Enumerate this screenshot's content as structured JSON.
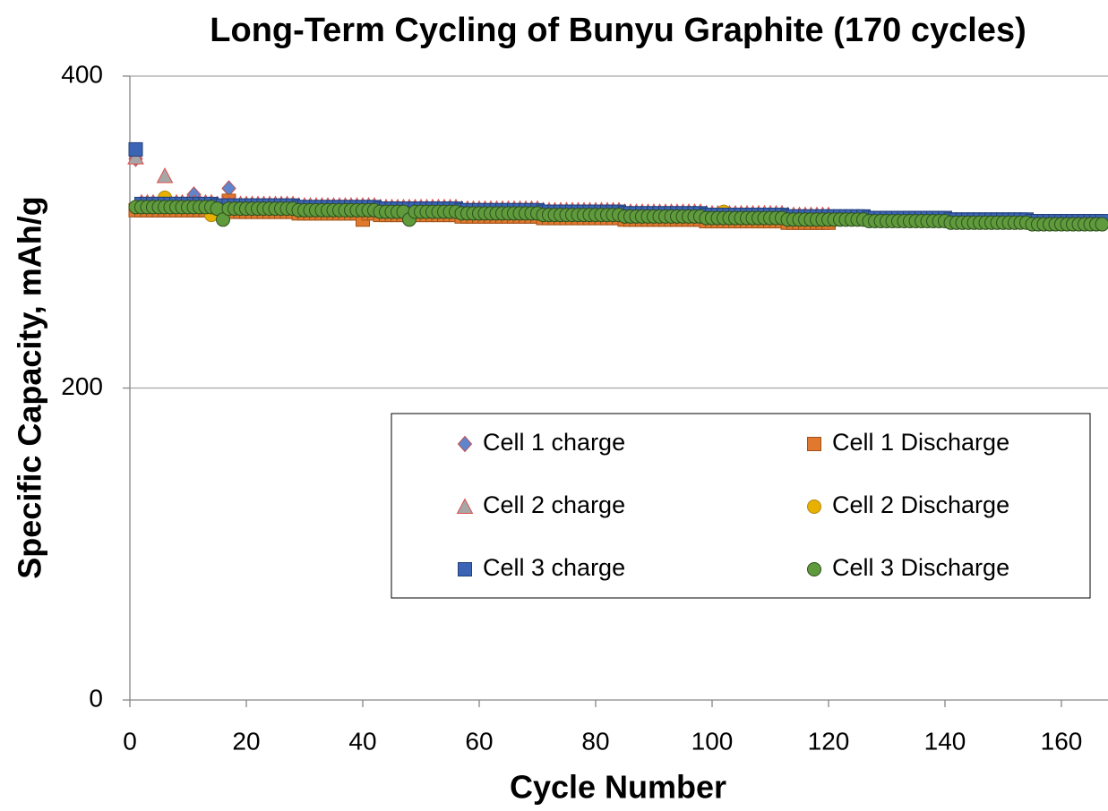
{
  "chart_data": {
    "type": "scatter",
    "title": "Long-Term Cycling of Bunyu Graphite (170 cycles)",
    "xlabel": "Cycle Number",
    "ylabel": "Specific Capacity, mAh/g",
    "xlim": [
      0,
      168
    ],
    "xticks": [
      0,
      20,
      40,
      60,
      80,
      100,
      120,
      140,
      160
    ],
    "ylim": [
      0,
      400
    ],
    "yticks": [
      0,
      200,
      400
    ],
    "grid": true,
    "legend_columns": 2,
    "x": [
      1,
      2,
      3,
      4,
      5,
      6,
      7,
      8,
      9,
      10,
      11,
      12,
      13,
      14,
      15,
      16,
      17,
      18,
      19,
      20,
      21,
      22,
      23,
      24,
      25,
      26,
      27,
      28,
      29,
      30,
      31,
      32,
      33,
      34,
      35,
      36,
      37,
      38,
      39,
      40,
      41,
      42,
      43,
      44,
      45,
      46,
      47,
      48,
      49,
      50,
      51,
      52,
      53,
      54,
      55,
      56,
      57,
      58,
      59,
      60,
      61,
      62,
      63,
      64,
      65,
      66,
      67,
      68,
      69,
      70,
      71,
      72,
      73,
      74,
      75,
      76,
      77,
      78,
      79,
      80,
      81,
      82,
      83,
      84,
      85,
      86,
      87,
      88,
      89,
      90,
      91,
      92,
      93,
      94,
      95,
      96,
      97,
      98,
      99,
      100,
      101,
      102,
      103,
      104,
      105,
      106,
      107,
      108,
      109,
      110,
      111,
      112,
      113,
      114,
      115,
      116,
      117,
      118,
      119,
      120,
      121,
      122,
      123,
      124,
      125,
      126,
      127,
      128,
      129,
      130,
      131,
      132,
      133,
      134,
      135,
      136,
      137,
      138,
      139,
      140,
      141,
      142,
      143,
      144,
      145,
      146,
      147,
      148,
      149,
      150,
      151,
      152,
      153,
      154,
      155,
      156,
      157,
      158,
      159,
      160,
      161,
      162,
      163,
      164,
      165,
      166,
      167
    ],
    "series": [
      {
        "name": "Cell 1 charge",
        "marker": "diamond",
        "color": "#5f86cc",
        "edgecolor": "#c0504d",
        "values": [
          347,
          318,
          318,
          318,
          318,
          318,
          318,
          318,
          318,
          318,
          324,
          318,
          318,
          318,
          317,
          317,
          328,
          317,
          317,
          317,
          317,
          317,
          317,
          317,
          317,
          317,
          317,
          317,
          316,
          316,
          316,
          316,
          316,
          316,
          316,
          316,
          316,
          316,
          316,
          316,
          316,
          316,
          315,
          315,
          315,
          315,
          315,
          315,
          315,
          315,
          315,
          315,
          315,
          315,
          315,
          315,
          314,
          314,
          314,
          314,
          314,
          314,
          314,
          314,
          314,
          314,
          314,
          314,
          314,
          314,
          313,
          313,
          313,
          313,
          313,
          313,
          313,
          313,
          313,
          313,
          313,
          313,
          313,
          313,
          312,
          312,
          312,
          312,
          312,
          312,
          312,
          312,
          312,
          312,
          312,
          312,
          312,
          312,
          311,
          311,
          311,
          311,
          311,
          311,
          311,
          311,
          311,
          311,
          311,
          311,
          311,
          311,
          310,
          310,
          310,
          310,
          310,
          310,
          310,
          310,
          null,
          null,
          null,
          null,
          null,
          null,
          null,
          null,
          null,
          null,
          null,
          null,
          null,
          null,
          null,
          null,
          null,
          null,
          null,
          null,
          null,
          null,
          null,
          null,
          null,
          null,
          null,
          null,
          null,
          null,
          null,
          null,
          null,
          null,
          null,
          null,
          null,
          null,
          null,
          null,
          null,
          null,
          null,
          null,
          null,
          null,
          null
        ]
      },
      {
        "name": "Cell 1 Discharge",
        "marker": "square",
        "color": "#e0782e",
        "edgecolor": "#a0521a",
        "values": [
          314,
          314,
          314,
          314,
          314,
          314,
          314,
          314,
          314,
          314,
          314,
          314,
          314,
          314,
          313,
          313,
          320,
          313,
          313,
          313,
          313,
          313,
          313,
          313,
          313,
          313,
          313,
          313,
          312,
          312,
          312,
          312,
          312,
          312,
          312,
          312,
          312,
          312,
          312,
          308,
          312,
          312,
          311,
          311,
          311,
          311,
          311,
          311,
          311,
          311,
          311,
          311,
          311,
          311,
          311,
          311,
          310,
          310,
          310,
          310,
          310,
          310,
          310,
          310,
          310,
          310,
          310,
          310,
          310,
          310,
          309,
          309,
          309,
          309,
          309,
          309,
          309,
          309,
          309,
          309,
          309,
          309,
          309,
          309,
          308,
          308,
          308,
          308,
          308,
          308,
          308,
          308,
          308,
          308,
          308,
          308,
          308,
          308,
          307,
          307,
          307,
          307,
          307,
          307,
          307,
          307,
          307,
          307,
          307,
          307,
          307,
          307,
          306,
          306,
          306,
          306,
          306,
          306,
          306,
          306,
          null,
          null,
          null,
          null,
          null,
          null,
          null,
          null,
          null,
          null,
          null,
          null,
          null,
          null,
          null,
          null,
          null,
          null,
          null,
          null,
          null,
          null,
          null,
          null,
          null,
          null,
          null,
          null,
          null,
          null,
          null,
          null,
          null,
          null,
          null,
          null,
          null,
          null,
          null,
          null,
          null,
          null,
          null,
          null,
          null,
          null,
          null
        ]
      },
      {
        "name": "Cell 2 charge",
        "marker": "triangle",
        "color": "#a6a6a6",
        "edgecolor": "#e0504d",
        "values": [
          348,
          319,
          319,
          319,
          319,
          336,
          319,
          319,
          319,
          319,
          319,
          319,
          319,
          319,
          318,
          318,
          318,
          318,
          318,
          318,
          318,
          318,
          318,
          318,
          318,
          318,
          318,
          318,
          317,
          317,
          317,
          317,
          317,
          317,
          317,
          317,
          317,
          317,
          317,
          317,
          317,
          317,
          316,
          316,
          316,
          316,
          316,
          316,
          316,
          316,
          316,
          316,
          316,
          316,
          316,
          316,
          315,
          315,
          315,
          315,
          315,
          315,
          315,
          315,
          315,
          315,
          315,
          315,
          315,
          315,
          314,
          314,
          314,
          314,
          314,
          314,
          314,
          314,
          314,
          314,
          314,
          314,
          314,
          314,
          313,
          313,
          313,
          313,
          313,
          313,
          313,
          313,
          313,
          313,
          313,
          313,
          313,
          313,
          312,
          312,
          312,
          312,
          312,
          312,
          312,
          312,
          312,
          312,
          312,
          312,
          312,
          312,
          311,
          311,
          311,
          311,
          311,
          311,
          311,
          311,
          null,
          null,
          null,
          null,
          null,
          null,
          null,
          null,
          null,
          null,
          null,
          null,
          null,
          null,
          null,
          null,
          null,
          null,
          null,
          null,
          null,
          null,
          null,
          null,
          null,
          null,
          null,
          null,
          null,
          null,
          null,
          null,
          null,
          null,
          null,
          null,
          null,
          null,
          null,
          null,
          null,
          null,
          null,
          null,
          null,
          null,
          null
        ]
      },
      {
        "name": "Cell 2 Discharge",
        "marker": "circle",
        "color": "#e8b000",
        "edgecolor": "#b08a10",
        "values": [
          316,
          316,
          316,
          316,
          316,
          322,
          316,
          316,
          316,
          316,
          316,
          316,
          316,
          311,
          315,
          315,
          315,
          315,
          315,
          315,
          315,
          315,
          315,
          315,
          315,
          315,
          315,
          315,
          314,
          314,
          314,
          314,
          314,
          314,
          314,
          314,
          314,
          314,
          314,
          314,
          314,
          314,
          313,
          313,
          313,
          313,
          313,
          313,
          313,
          313,
          313,
          313,
          313,
          313,
          313,
          313,
          312,
          312,
          312,
          312,
          312,
          312,
          312,
          312,
          312,
          312,
          312,
          312,
          312,
          312,
          311,
          311,
          311,
          311,
          311,
          311,
          311,
          311,
          311,
          311,
          311,
          311,
          311,
          311,
          310,
          310,
          310,
          310,
          310,
          310,
          310,
          310,
          310,
          310,
          310,
          310,
          310,
          310,
          309,
          309,
          309,
          313,
          309,
          309,
          309,
          309,
          309,
          309,
          309,
          309,
          309,
          309,
          308,
          308,
          308,
          308,
          308,
          308,
          308,
          308,
          null,
          null,
          null,
          null,
          null,
          null,
          null,
          null,
          null,
          null,
          null,
          null,
          null,
          null,
          null,
          null,
          null,
          null,
          null,
          null,
          null,
          null,
          null,
          null,
          null,
          null,
          null,
          null,
          null,
          null,
          null,
          null,
          null,
          null,
          null,
          null,
          null,
          null,
          null,
          null,
          null,
          null,
          null,
          null,
          null,
          null,
          null
        ]
      },
      {
        "name": "Cell 3 charge",
        "marker": "square",
        "color": "#3b64b4",
        "edgecolor": "#23407a",
        "values": [
          353,
          318,
          318,
          318,
          318,
          318,
          318,
          318,
          318,
          318,
          318,
          318,
          318,
          318,
          317,
          317,
          317,
          317,
          317,
          317,
          317,
          317,
          317,
          317,
          317,
          317,
          317,
          317,
          316,
          316,
          316,
          316,
          316,
          316,
          316,
          316,
          316,
          316,
          316,
          316,
          316,
          316,
          315,
          315,
          315,
          315,
          315,
          315,
          315,
          315,
          315,
          315,
          315,
          315,
          315,
          315,
          314,
          314,
          314,
          314,
          314,
          314,
          314,
          314,
          314,
          314,
          314,
          314,
          314,
          314,
          313,
          313,
          313,
          313,
          313,
          313,
          313,
          313,
          313,
          313,
          313,
          313,
          313,
          313,
          312,
          312,
          312,
          312,
          312,
          312,
          312,
          312,
          312,
          312,
          312,
          312,
          312,
          312,
          311,
          311,
          311,
          311,
          311,
          311,
          311,
          311,
          311,
          311,
          311,
          311,
          311,
          311,
          310,
          310,
          310,
          310,
          310,
          310,
          310,
          310,
          310,
          310,
          310,
          310,
          310,
          310,
          309,
          309,
          309,
          309,
          309,
          309,
          309,
          309,
          309,
          309,
          309,
          309,
          309,
          309,
          308,
          308,
          308,
          308,
          308,
          308,
          308,
          308,
          308,
          308,
          308,
          308,
          308,
          308,
          307,
          307,
          307,
          307,
          307,
          307,
          307,
          307,
          307,
          307,
          307,
          307,
          307
        ]
      },
      {
        "name": "Cell 3 Discharge",
        "marker": "circle",
        "color": "#5f9a3c",
        "edgecolor": "#2f4f1e",
        "values": [
          316,
          316,
          316,
          316,
          316,
          316,
          316,
          316,
          316,
          316,
          316,
          316,
          316,
          316,
          315,
          308,
          315,
          315,
          315,
          315,
          315,
          315,
          315,
          315,
          315,
          315,
          315,
          315,
          314,
          314,
          314,
          314,
          314,
          314,
          314,
          314,
          314,
          314,
          314,
          314,
          314,
          314,
          313,
          313,
          313,
          313,
          313,
          308,
          313,
          313,
          313,
          313,
          313,
          313,
          313,
          313,
          312,
          312,
          312,
          312,
          312,
          312,
          312,
          312,
          312,
          312,
          312,
          312,
          312,
          312,
          311,
          311,
          311,
          311,
          311,
          311,
          311,
          311,
          311,
          311,
          311,
          311,
          311,
          311,
          310,
          310,
          310,
          310,
          310,
          310,
          310,
          310,
          310,
          310,
          310,
          310,
          310,
          310,
          309,
          309,
          309,
          309,
          309,
          309,
          309,
          309,
          309,
          309,
          309,
          309,
          309,
          309,
          308,
          308,
          308,
          308,
          308,
          308,
          308,
          308,
          308,
          308,
          308,
          308,
          308,
          308,
          307,
          307,
          307,
          307,
          307,
          307,
          307,
          307,
          307,
          307,
          307,
          307,
          307,
          307,
          306,
          306,
          306,
          306,
          306,
          306,
          306,
          306,
          306,
          306,
          306,
          306,
          306,
          306,
          305,
          305,
          305,
          305,
          305,
          305,
          305,
          305,
          305,
          305,
          305,
          305,
          305
        ]
      }
    ]
  }
}
